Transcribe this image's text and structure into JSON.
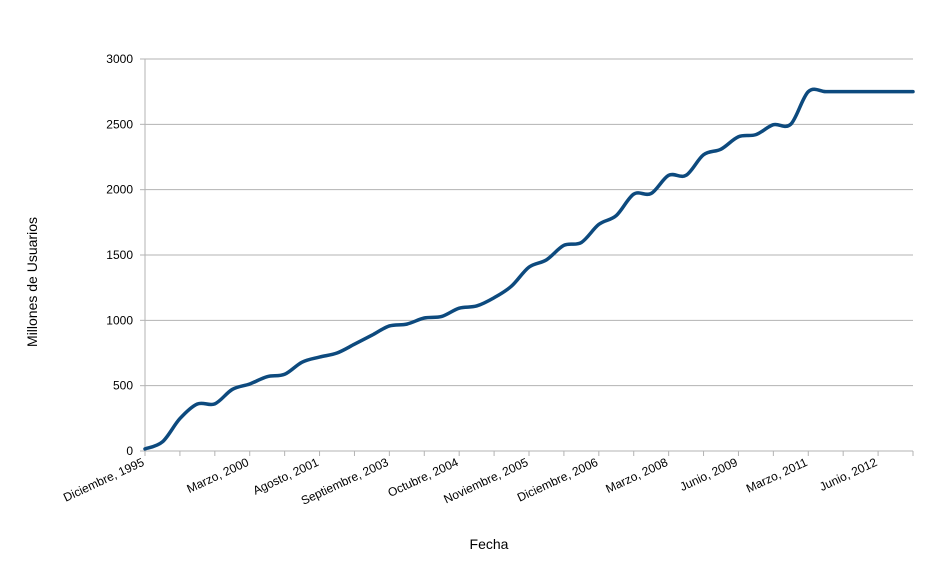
{
  "chart_data": {
    "type": "line",
    "title": "",
    "xlabel": "Fecha",
    "ylabel": "Millones de Usuarios",
    "ylim": [
      0,
      3000
    ],
    "yticks": [
      0,
      500,
      1000,
      1500,
      2000,
      2500,
      3000
    ],
    "grid": true,
    "legend": "none",
    "x_tick_labels": [
      "Diciembre, 1995",
      "Marzo, 2000",
      "Agosto, 2001",
      "Septiembre, 2003",
      "Octubre, 2004",
      "Noviembre, 2005",
      "Diciembre, 2006",
      "Marzo, 2008",
      "Junio, 2009",
      "Marzo, 2011",
      "Junio, 2012"
    ],
    "x_tick_positions": [
      0,
      3,
      5,
      7,
      9,
      11,
      13,
      15,
      17,
      19,
      21
    ],
    "x_index_max": 22,
    "series": [
      {
        "color": "#0d4a7e",
        "x": [
          0,
          0.5,
          1,
          1.5,
          2,
          2.5,
          3,
          3.5,
          4,
          4.5,
          5,
          5.5,
          6,
          6.5,
          7,
          7.5,
          8,
          8.5,
          9,
          9.5,
          10,
          10.5,
          11,
          11.5,
          12,
          12.5,
          13,
          13.5,
          14,
          14.5,
          15,
          15.5,
          16,
          16.5,
          17,
          17.5,
          18,
          18.5,
          19,
          19.5,
          20,
          20.5,
          21,
          21.5,
          22
        ],
        "values": [
          16,
          70,
          248,
          360,
          361,
          471,
          513,
          569,
          587,
          680,
          719,
          750,
          817,
          886,
          957,
          971,
          1018,
          1030,
          1093,
          1110,
          1173,
          1262,
          1407,
          1463,
          1574,
          1596,
          1734,
          1802,
          1966,
          1971,
          2110,
          2110,
          2267,
          2310,
          2405,
          2421,
          2497,
          2501,
          2750,
          2750,
          2750,
          2750,
          2750,
          2750,
          2750
        ]
      }
    ]
  }
}
